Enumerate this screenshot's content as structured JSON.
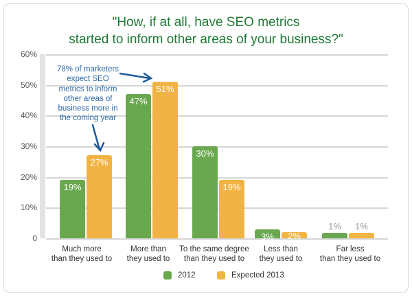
{
  "chart_data": {
    "type": "bar",
    "title": "\"How, if at all, have SEO metrics started to inform other areas of your business?\"",
    "title_lines": [
      "\"How, if at all, have SEO metrics",
      "started to inform other areas of your business?\""
    ],
    "categories": [
      "Much more than they used to",
      "More than they used to",
      "To the same degree than they used to",
      "Less than they used to",
      "Far less than they used to"
    ],
    "category_lines": [
      [
        "Much more",
        "than they used to"
      ],
      [
        "More than",
        "they used to"
      ],
      [
        "To the same degree",
        "than they used to"
      ],
      [
        "Less than",
        "they used to"
      ],
      [
        "Far less",
        "than they used to"
      ]
    ],
    "series": [
      {
        "name": "2012",
        "color": "#6aa84f",
        "values": [
          19,
          47,
          30,
          3,
          1
        ],
        "labels": [
          "19%",
          "47%",
          "30%",
          "3%",
          "1%"
        ]
      },
      {
        "name": "Expected 2013",
        "color": "#f1b444",
        "values": [
          27,
          51,
          19,
          2,
          1
        ],
        "labels": [
          "27%",
          "51%",
          "19%",
          "2%",
          "1%"
        ]
      }
    ],
    "yticks": [
      "0",
      "10%",
      "20%",
      "30%",
      "40%",
      "50%",
      "60%"
    ],
    "ylim": [
      0,
      60
    ],
    "xlabel": "",
    "ylabel": "",
    "grid": true,
    "legend_position": "bottom",
    "annotation": "78% of marketers expect SEO metrics to inform other areas of business more in the coming year",
    "annotation_lines": [
      "78% of marketers",
      "expect SEO",
      "metrics to inform",
      "other areas of",
      "business more in",
      "the coming year"
    ]
  },
  "colors": {
    "title": "#1f7a35",
    "annotation": "#2c6aa8",
    "series_2012": "#6aa84f",
    "series_2013": "#f1b444"
  }
}
